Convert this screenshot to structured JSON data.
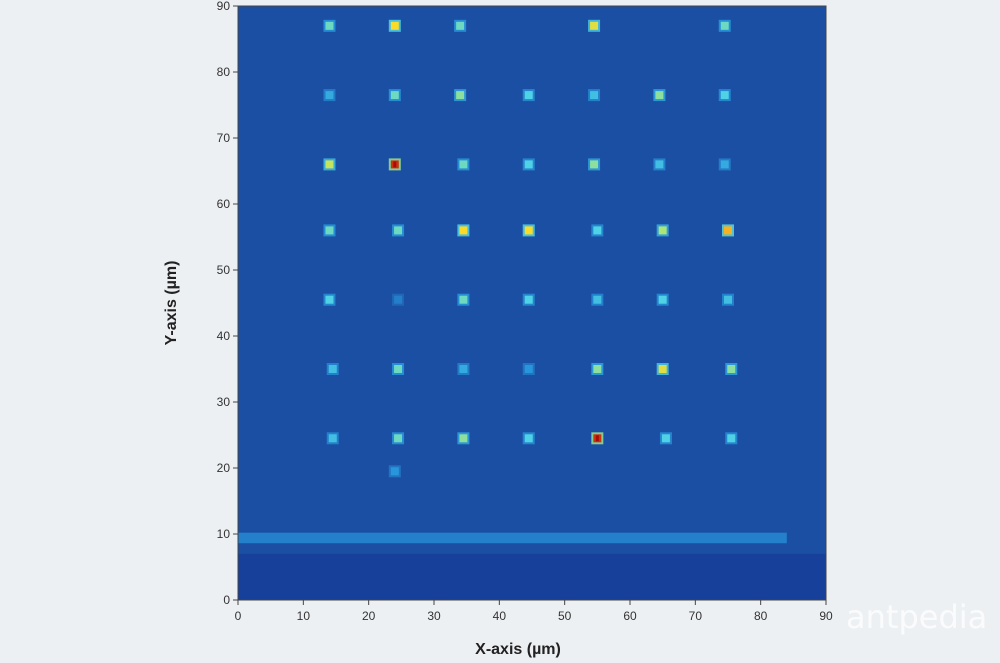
{
  "chart_data": {
    "type": "heatmap",
    "title": "",
    "xlabel": "X-axis (µm)",
    "ylabel": "Y-axis (µm)",
    "xlim": [
      0,
      90
    ],
    "ylim": [
      0,
      90
    ],
    "xticks": [
      0,
      10,
      20,
      30,
      40,
      50,
      60,
      70,
      80,
      90
    ],
    "yticks": [
      0,
      10,
      20,
      30,
      40,
      50,
      60,
      70,
      80,
      90
    ],
    "grid": false,
    "colormap": "jet",
    "background_color": "#1b4fa3",
    "spots": [
      {
        "x": 14,
        "y": 87,
        "v": 0.5
      },
      {
        "x": 24,
        "y": 87,
        "v": 0.75
      },
      {
        "x": 34,
        "y": 87,
        "v": 0.5
      },
      {
        "x": 54.5,
        "y": 87,
        "v": 0.7
      },
      {
        "x": 74.5,
        "y": 87,
        "v": 0.5
      },
      {
        "x": 14,
        "y": 76.5,
        "v": 0.35
      },
      {
        "x": 24,
        "y": 76.5,
        "v": 0.5
      },
      {
        "x": 34,
        "y": 76.5,
        "v": 0.55
      },
      {
        "x": 44.5,
        "y": 76.5,
        "v": 0.45
      },
      {
        "x": 54.5,
        "y": 76.5,
        "v": 0.4
      },
      {
        "x": 64.5,
        "y": 76.5,
        "v": 0.55
      },
      {
        "x": 74.5,
        "y": 76.5,
        "v": 0.45
      },
      {
        "x": 14,
        "y": 66,
        "v": 0.65
      },
      {
        "x": 24,
        "y": 66,
        "v": 0.95
      },
      {
        "x": 34.5,
        "y": 66,
        "v": 0.5
      },
      {
        "x": 44.5,
        "y": 66,
        "v": 0.45
      },
      {
        "x": 54.5,
        "y": 66,
        "v": 0.55
      },
      {
        "x": 64.5,
        "y": 66,
        "v": 0.4
      },
      {
        "x": 74.5,
        "y": 66,
        "v": 0.35
      },
      {
        "x": 14,
        "y": 56,
        "v": 0.5
      },
      {
        "x": 24.5,
        "y": 56,
        "v": 0.5
      },
      {
        "x": 34.5,
        "y": 56,
        "v": 0.75
      },
      {
        "x": 44.5,
        "y": 56,
        "v": 0.75
      },
      {
        "x": 55,
        "y": 56,
        "v": 0.45
      },
      {
        "x": 65,
        "y": 56,
        "v": 0.6
      },
      {
        "x": 75,
        "y": 56,
        "v": 0.8
      },
      {
        "x": 14,
        "y": 45.5,
        "v": 0.45
      },
      {
        "x": 24.5,
        "y": 45.5,
        "v": 0.2
      },
      {
        "x": 34.5,
        "y": 45.5,
        "v": 0.5
      },
      {
        "x": 44.5,
        "y": 45.5,
        "v": 0.45
      },
      {
        "x": 55,
        "y": 45.5,
        "v": 0.4
      },
      {
        "x": 65,
        "y": 45.5,
        "v": 0.45
      },
      {
        "x": 75,
        "y": 45.5,
        "v": 0.4
      },
      {
        "x": 14.5,
        "y": 35,
        "v": 0.4
      },
      {
        "x": 24.5,
        "y": 35,
        "v": 0.5
      },
      {
        "x": 34.5,
        "y": 35,
        "v": 0.35
      },
      {
        "x": 44.5,
        "y": 35,
        "v": 0.3
      },
      {
        "x": 55,
        "y": 35,
        "v": 0.55
      },
      {
        "x": 65,
        "y": 35,
        "v": 0.7
      },
      {
        "x": 75.5,
        "y": 35,
        "v": 0.55
      },
      {
        "x": 14.5,
        "y": 24.5,
        "v": 0.4
      },
      {
        "x": 24.5,
        "y": 24.5,
        "v": 0.5
      },
      {
        "x": 34.5,
        "y": 24.5,
        "v": 0.55
      },
      {
        "x": 44.5,
        "y": 24.5,
        "v": 0.45
      },
      {
        "x": 55,
        "y": 24.5,
        "v": 0.95
      },
      {
        "x": 65.5,
        "y": 24.5,
        "v": 0.45
      },
      {
        "x": 75.5,
        "y": 24.5,
        "v": 0.45
      },
      {
        "x": 24,
        "y": 19.5,
        "v": 0.3
      }
    ],
    "band": {
      "y": 9.5,
      "x_from": 0,
      "x_to": 84,
      "v": 0.3
    },
    "dark_region_below_y": 7
  },
  "watermark": "antpedia"
}
